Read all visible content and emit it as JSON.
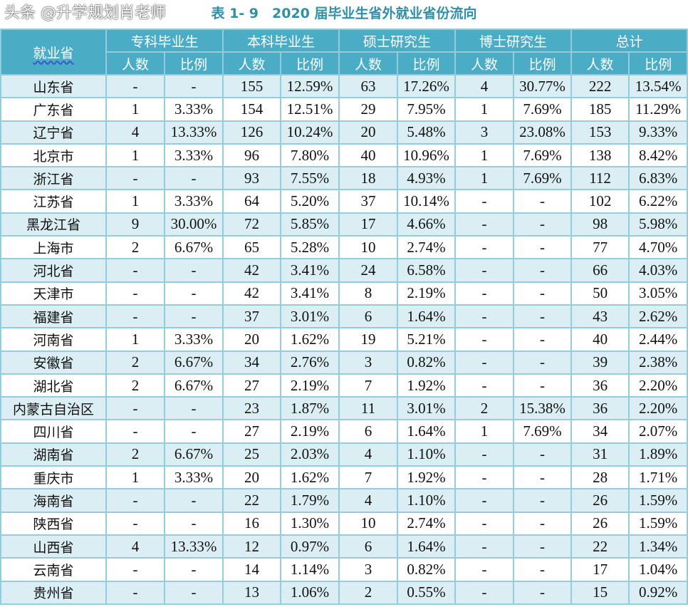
{
  "title": "表 1- 9　2020 届毕业生省外就业省份流向",
  "header": {
    "province": "就业省",
    "groups": [
      "专科毕业生",
      "本科毕业生",
      "硕士研究生",
      "博士研究生",
      "总计"
    ],
    "sub": [
      "人数",
      "比例"
    ]
  },
  "rows": [
    [
      "山东省",
      "-",
      "-",
      "155",
      "12.59%",
      "63",
      "17.26%",
      "4",
      "30.77%",
      "222",
      "13.54%"
    ],
    [
      "广东省",
      "1",
      "3.33%",
      "154",
      "12.51%",
      "29",
      "7.95%",
      "1",
      "7.69%",
      "185",
      "11.29%"
    ],
    [
      "辽宁省",
      "4",
      "13.33%",
      "126",
      "10.24%",
      "20",
      "5.48%",
      "3",
      "23.08%",
      "153",
      "9.33%"
    ],
    [
      "北京市",
      "1",
      "3.33%",
      "96",
      "7.80%",
      "40",
      "10.96%",
      "1",
      "7.69%",
      "138",
      "8.42%"
    ],
    [
      "浙江省",
      "-",
      "-",
      "93",
      "7.55%",
      "18",
      "4.93%",
      "1",
      "7.69%",
      "112",
      "6.83%"
    ],
    [
      "江苏省",
      "1",
      "3.33%",
      "64",
      "5.20%",
      "37",
      "10.14%",
      "-",
      "-",
      "102",
      "6.22%"
    ],
    [
      "黑龙江省",
      "9",
      "30.00%",
      "72",
      "5.85%",
      "17",
      "4.66%",
      "-",
      "-",
      "98",
      "5.98%"
    ],
    [
      "上海市",
      "2",
      "6.67%",
      "65",
      "5.28%",
      "10",
      "2.74%",
      "-",
      "-",
      "77",
      "4.70%"
    ],
    [
      "河北省",
      "-",
      "-",
      "42",
      "3.41%",
      "24",
      "6.58%",
      "-",
      "-",
      "66",
      "4.03%"
    ],
    [
      "天津市",
      "-",
      "-",
      "42",
      "3.41%",
      "8",
      "2.19%",
      "-",
      "-",
      "50",
      "3.05%"
    ],
    [
      "福建省",
      "-",
      "-",
      "37",
      "3.01%",
      "6",
      "1.64%",
      "-",
      "-",
      "43",
      "2.62%"
    ],
    [
      "河南省",
      "1",
      "3.33%",
      "20",
      "1.62%",
      "19",
      "5.21%",
      "-",
      "-",
      "40",
      "2.44%"
    ],
    [
      "安徽省",
      "2",
      "6.67%",
      "34",
      "2.76%",
      "3",
      "0.82%",
      "-",
      "-",
      "39",
      "2.38%"
    ],
    [
      "湖北省",
      "2",
      "6.67%",
      "27",
      "2.19%",
      "7",
      "1.92%",
      "-",
      "-",
      "36",
      "2.20%"
    ],
    [
      "内蒙古自治区",
      "-",
      "-",
      "23",
      "1.87%",
      "11",
      "3.01%",
      "2",
      "15.38%",
      "36",
      "2.20%"
    ],
    [
      "四川省",
      "-",
      "-",
      "27",
      "2.19%",
      "6",
      "1.64%",
      "1",
      "7.69%",
      "34",
      "2.07%"
    ],
    [
      "湖南省",
      "2",
      "6.67%",
      "25",
      "2.03%",
      "4",
      "1.10%",
      "-",
      "-",
      "31",
      "1.89%"
    ],
    [
      "重庆市",
      "1",
      "3.33%",
      "20",
      "1.62%",
      "7",
      "1.92%",
      "-",
      "-",
      "28",
      "1.71%"
    ],
    [
      "海南省",
      "-",
      "-",
      "22",
      "1.79%",
      "4",
      "1.10%",
      "-",
      "-",
      "26",
      "1.59%"
    ],
    [
      "陕西省",
      "-",
      "-",
      "16",
      "1.30%",
      "10",
      "2.74%",
      "-",
      "-",
      "26",
      "1.59%"
    ],
    [
      "山西省",
      "4",
      "13.33%",
      "12",
      "0.97%",
      "6",
      "1.64%",
      "-",
      "-",
      "22",
      "1.34%"
    ],
    [
      "云南省",
      "-",
      "-",
      "14",
      "1.14%",
      "3",
      "0.82%",
      "-",
      "-",
      "17",
      "1.04%"
    ],
    [
      "贵州省",
      "-",
      "-",
      "13",
      "1.06%",
      "2",
      "0.55%",
      "-",
      "-",
      "15",
      "0.92%"
    ]
  ],
  "watermark": "头条 @升学规划肖老师",
  "colors": {
    "header": "#4bacc6",
    "band": "#dbeef3",
    "border": "#93cddd",
    "title": "#2f8fa8"
  }
}
